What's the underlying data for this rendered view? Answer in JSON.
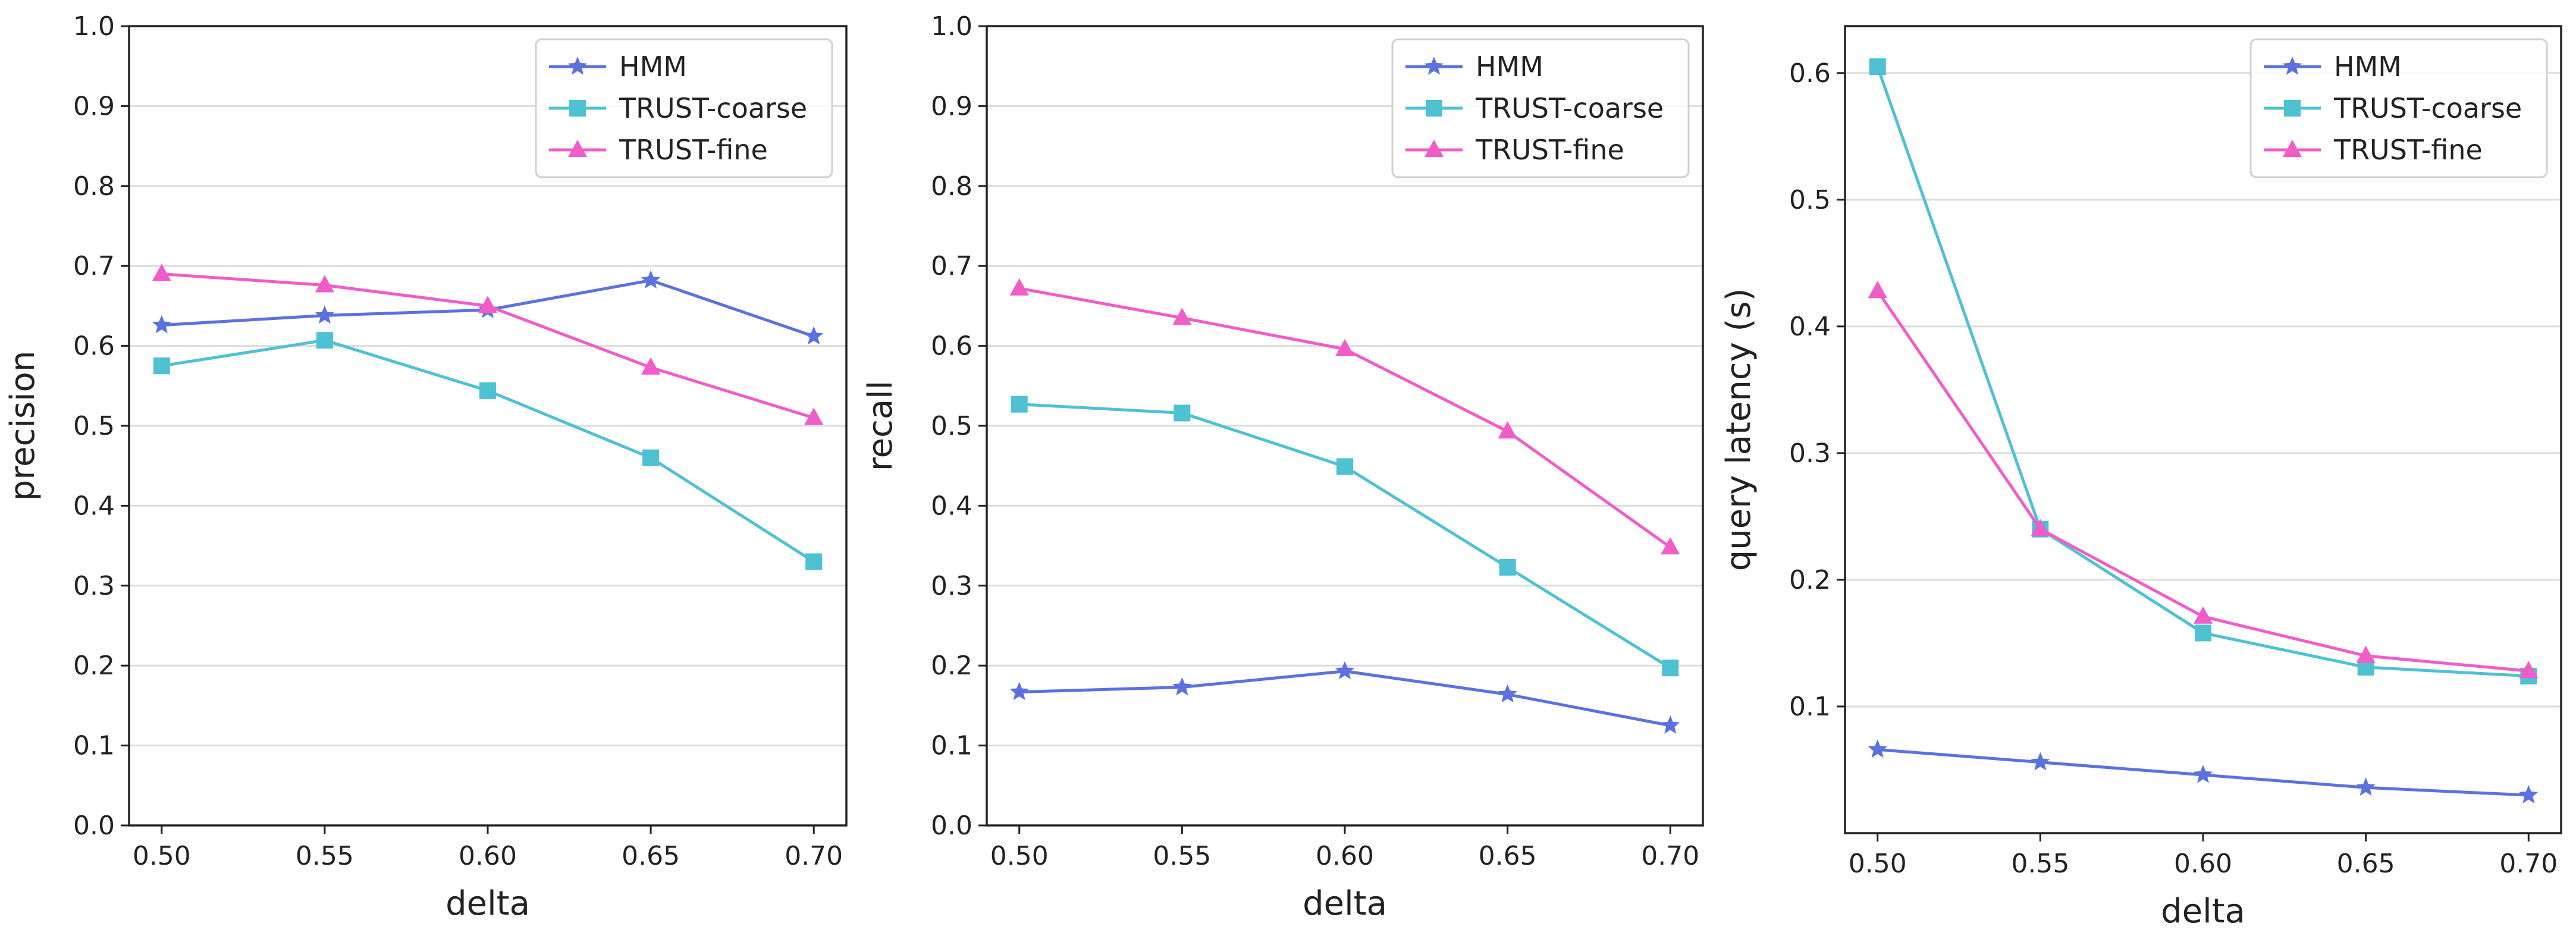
{
  "chart_data": [
    {
      "type": "line",
      "title": "",
      "xlabel": "delta",
      "ylabel": "precision",
      "x": [
        0.5,
        0.55,
        0.6,
        0.65,
        0.7
      ],
      "x_tick_labels": [
        "0.50",
        "0.55",
        "0.60",
        "0.65",
        "0.70"
      ],
      "xlim": [
        0.49,
        0.71
      ],
      "ylim": [
        0.0,
        1.0
      ],
      "y_ticks": [
        0.0,
        0.1,
        0.2,
        0.3,
        0.4,
        0.5,
        0.6,
        0.7,
        0.8,
        0.9,
        1.0
      ],
      "y_tick_labels": [
        "0.0",
        "0.1",
        "0.2",
        "0.3",
        "0.4",
        "0.5",
        "0.6",
        "0.7",
        "0.8",
        "0.9",
        "1.0"
      ],
      "grid": "horizontal",
      "legend_position": "top-right",
      "series": [
        {
          "name": "HMM",
          "color": "#5b72de",
          "marker": "star",
          "values": [
            0.626,
            0.638,
            0.645,
            0.682,
            0.612
          ]
        },
        {
          "name": "TRUST-coarse",
          "color": "#4ec1d3",
          "marker": "square",
          "values": [
            0.575,
            0.607,
            0.544,
            0.46,
            0.33
          ]
        },
        {
          "name": "TRUST-fine",
          "color": "#f05cc8",
          "marker": "triangle",
          "values": [
            0.69,
            0.676,
            0.65,
            0.573,
            0.51
          ]
        }
      ]
    },
    {
      "type": "line",
      "title": "",
      "xlabel": "delta",
      "ylabel": "recall",
      "x": [
        0.5,
        0.55,
        0.6,
        0.65,
        0.7
      ],
      "x_tick_labels": [
        "0.50",
        "0.55",
        "0.60",
        "0.65",
        "0.70"
      ],
      "xlim": [
        0.49,
        0.71
      ],
      "ylim": [
        0.0,
        1.0
      ],
      "y_ticks": [
        0.0,
        0.1,
        0.2,
        0.3,
        0.4,
        0.5,
        0.6,
        0.7,
        0.8,
        0.9,
        1.0
      ],
      "y_tick_labels": [
        "0.0",
        "0.1",
        "0.2",
        "0.3",
        "0.4",
        "0.5",
        "0.6",
        "0.7",
        "0.8",
        "0.9",
        "1.0"
      ],
      "grid": "horizontal",
      "legend_position": "top-right",
      "series": [
        {
          "name": "HMM",
          "color": "#5b72de",
          "marker": "star",
          "values": [
            0.167,
            0.173,
            0.193,
            0.164,
            0.125
          ]
        },
        {
          "name": "TRUST-coarse",
          "color": "#4ec1d3",
          "marker": "square",
          "values": [
            0.527,
            0.516,
            0.449,
            0.323,
            0.197
          ]
        },
        {
          "name": "TRUST-fine",
          "color": "#f05cc8",
          "marker": "triangle",
          "values": [
            0.672,
            0.635,
            0.596,
            0.493,
            0.348
          ]
        }
      ]
    },
    {
      "type": "line",
      "title": "",
      "xlabel": "delta",
      "ylabel": "query latency (s)",
      "x": [
        0.5,
        0.55,
        0.6,
        0.65,
        0.7
      ],
      "x_tick_labels": [
        "0.50",
        "0.55",
        "0.60",
        "0.65",
        "0.70"
      ],
      "xlim": [
        0.49,
        0.71
      ],
      "ylim": [
        0.0,
        0.637
      ],
      "y_ticks": [
        0.1,
        0.2,
        0.3,
        0.4,
        0.5,
        0.6
      ],
      "y_tick_labels": [
        "0.1",
        "0.2",
        "0.3",
        "0.4",
        "0.5",
        "0.6"
      ],
      "grid": "horizontal",
      "legend_position": "top-right",
      "series": [
        {
          "name": "HMM",
          "color": "#5b72de",
          "marker": "star",
          "values": [
            0.066,
            0.056,
            0.046,
            0.036,
            0.03
          ]
        },
        {
          "name": "TRUST-coarse",
          "color": "#4ec1d3",
          "marker": "square",
          "values": [
            0.605,
            0.24,
            0.158,
            0.131,
            0.124
          ]
        },
        {
          "name": "TRUST-fine",
          "color": "#f05cc8",
          "marker": "triangle",
          "values": [
            0.428,
            0.24,
            0.171,
            0.14,
            0.128
          ]
        }
      ]
    }
  ]
}
